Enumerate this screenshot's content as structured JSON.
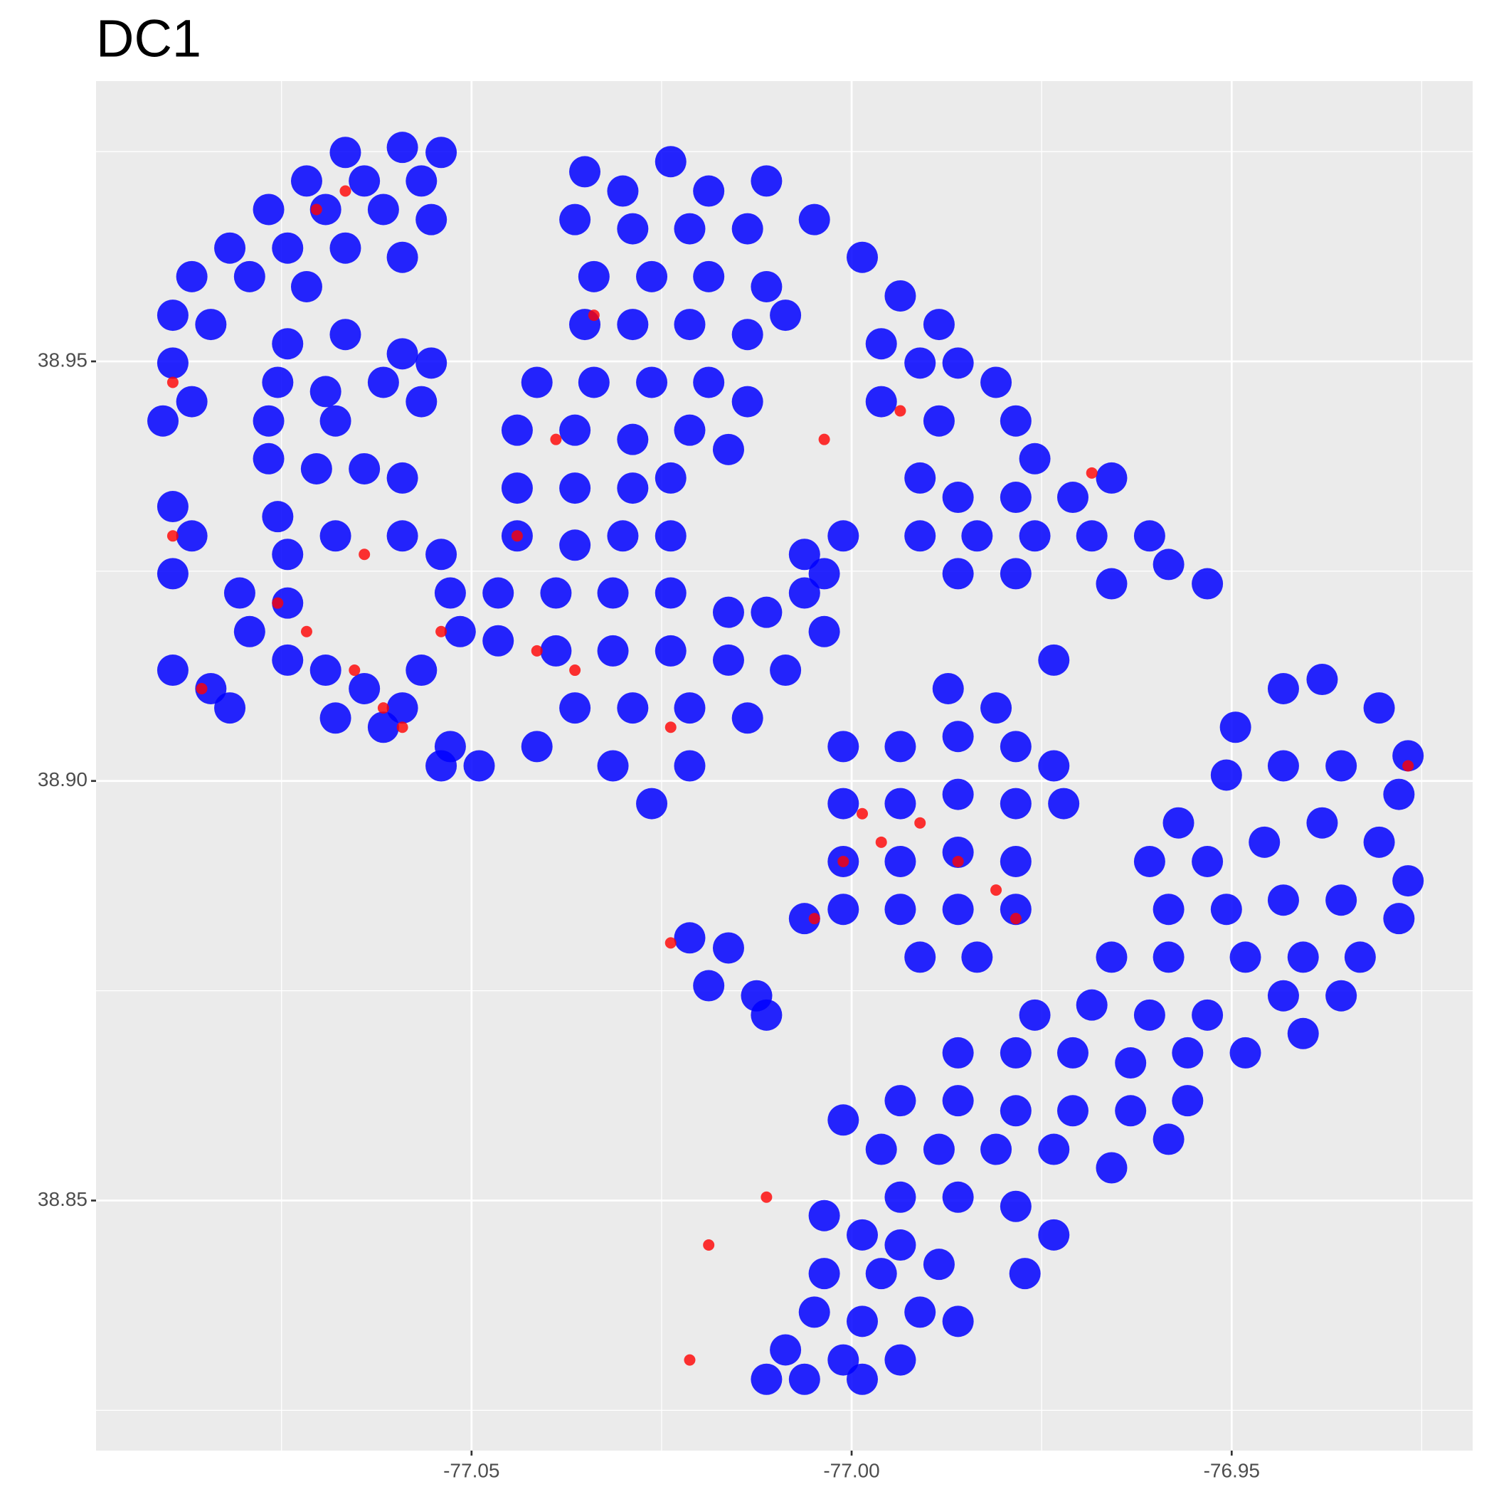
{
  "chart_data": {
    "type": "scatter",
    "title": "DC1",
    "xlim": [
      -77.0994,
      -76.9183
    ],
    "ylim": [
      38.8202,
      38.9834
    ],
    "xticks": [
      -77.05,
      {
        "value": -77,
        "label": "-77.00"
      },
      -76.95
    ],
    "yticks": [
      38.85,
      {
        "value": 38.9,
        "label": "38.90"
      },
      38.95
    ],
    "grid": true,
    "series": [
      {
        "color": "#0000ff",
        "points": [
          [
            -77.0666,
            38.9749
          ],
          [
            -77.0591,
            38.9755
          ],
          [
            -77.054,
            38.9749
          ],
          [
            -77.0717,
            38.9715
          ],
          [
            -77.0641,
            38.9715
          ],
          [
            -77.0566,
            38.9715
          ],
          [
            -77.0767,
            38.9681
          ],
          [
            -77.0692,
            38.9681
          ],
          [
            -77.0616,
            38.9681
          ],
          [
            -77.0553,
            38.9669
          ],
          [
            -77.0818,
            38.9635
          ],
          [
            -77.0742,
            38.9635
          ],
          [
            -77.0666,
            38.9635
          ],
          [
            -77.0591,
            38.9624
          ],
          [
            -77.0868,
            38.9601
          ],
          [
            -77.0792,
            38.9601
          ],
          [
            -77.0717,
            38.9589
          ],
          [
            -77.0893,
            38.9555
          ],
          [
            -77.0843,
            38.9544
          ],
          [
            -77.0893,
            38.9498
          ],
          [
            -77.0868,
            38.9452
          ],
          [
            -77.0906,
            38.9429
          ],
          [
            -77.0742,
            38.9521
          ],
          [
            -77.0666,
            38.9532
          ],
          [
            -77.0591,
            38.9509
          ],
          [
            -77.0553,
            38.9498
          ],
          [
            -77.0755,
            38.9475
          ],
          [
            -77.0692,
            38.9464
          ],
          [
            -77.0616,
            38.9475
          ],
          [
            -77.0566,
            38.9452
          ],
          [
            -77.0767,
            38.9429
          ],
          [
            -77.0679,
            38.9429
          ],
          [
            -77.0767,
            38.9384
          ],
          [
            -77.0704,
            38.9372
          ],
          [
            -77.0641,
            38.9372
          ],
          [
            -77.0591,
            38.9361
          ],
          [
            -77.0893,
            38.9327
          ],
          [
            -77.0868,
            38.9292
          ],
          [
            -77.0893,
            38.9247
          ],
          [
            -77.0755,
            38.9315
          ],
          [
            -77.0742,
            38.927
          ],
          [
            -77.0679,
            38.9292
          ],
          [
            -77.0591,
            38.9292
          ],
          [
            -77.054,
            38.927
          ],
          [
            -77.0805,
            38.9224
          ],
          [
            -77.0742,
            38.9212
          ],
          [
            -77.0792,
            38.9178
          ],
          [
            -77.0893,
            38.9132
          ],
          [
            -77.0843,
            38.911
          ],
          [
            -77.0818,
            38.9087
          ],
          [
            -77.0742,
            38.9144
          ],
          [
            -77.0692,
            38.9132
          ],
          [
            -77.0641,
            38.911
          ],
          [
            -77.0591,
            38.9087
          ],
          [
            -77.0566,
            38.9132
          ],
          [
            -77.0679,
            38.9075
          ],
          [
            -77.0616,
            38.9064
          ],
          [
            -77.0515,
            38.9178
          ],
          [
            -77.0528,
            38.9224
          ],
          [
            -77.054,
            38.9018
          ],
          [
            -77.0351,
            38.9726
          ],
          [
            -77.0301,
            38.9703
          ],
          [
            -77.0238,
            38.9738
          ],
          [
            -77.0188,
            38.9703
          ],
          [
            -77.0364,
            38.9669
          ],
          [
            -77.0288,
            38.9658
          ],
          [
            -77.0213,
            38.9658
          ],
          [
            -77.0137,
            38.9658
          ],
          [
            -77.0339,
            38.9601
          ],
          [
            -77.0263,
            38.9601
          ],
          [
            -77.0188,
            38.9601
          ],
          [
            -77.0112,
            38.9589
          ],
          [
            -77.0351,
            38.9544
          ],
          [
            -77.0288,
            38.9544
          ],
          [
            -77.0213,
            38.9544
          ],
          [
            -77.0137,
            38.9532
          ],
          [
            -77.0087,
            38.9555
          ],
          [
            -77.0414,
            38.9475
          ],
          [
            -77.0339,
            38.9475
          ],
          [
            -77.0263,
            38.9475
          ],
          [
            -77.0188,
            38.9475
          ],
          [
            -77.0137,
            38.9452
          ],
          [
            -77.044,
            38.9418
          ],
          [
            -77.0364,
            38.9418
          ],
          [
            -77.0288,
            38.9407
          ],
          [
            -77.0213,
            38.9418
          ],
          [
            -77.0162,
            38.9395
          ],
          [
            -77.044,
            38.9349
          ],
          [
            -77.0364,
            38.9349
          ],
          [
            -77.0288,
            38.9349
          ],
          [
            -77.0238,
            38.9361
          ],
          [
            -77.044,
            38.9292
          ],
          [
            -77.0364,
            38.9281
          ],
          [
            -77.0301,
            38.9292
          ],
          [
            -77.0238,
            38.9292
          ],
          [
            -77.0465,
            38.9224
          ],
          [
            -77.0389,
            38.9224
          ],
          [
            -77.0314,
            38.9224
          ],
          [
            -77.0238,
            38.9224
          ],
          [
            -77.0162,
            38.9201
          ],
          [
            -77.0112,
            38.9201
          ],
          [
            -77.0062,
            38.9224
          ],
          [
            -77.0036,
            38.9178
          ],
          [
            -77.0465,
            38.9167
          ],
          [
            -77.0389,
            38.9155
          ],
          [
            -77.0314,
            38.9155
          ],
          [
            -77.0238,
            38.9155
          ],
          [
            -77.0162,
            38.9144
          ],
          [
            -77.0087,
            38.9132
          ],
          [
            -77.0364,
            38.9087
          ],
          [
            -77.0288,
            38.9087
          ],
          [
            -77.0213,
            38.9087
          ],
          [
            -77.0137,
            38.9075
          ],
          [
            -77.0528,
            38.9041
          ],
          [
            -77.049,
            38.9018
          ],
          [
            -77.0414,
            38.9041
          ],
          [
            -77.0314,
            38.9018
          ],
          [
            -77.0213,
            38.9018
          ],
          [
            -77.0263,
            38.8973
          ],
          [
            -77.0036,
            38.9247
          ],
          [
            -77.0062,
            38.927
          ],
          [
            -77.0011,
            38.9292
          ],
          [
            -77.0112,
            38.9715
          ],
          [
            -77.0049,
            38.9669
          ],
          [
            -76.9986,
            38.9624
          ],
          [
            -76.9936,
            38.9578
          ],
          [
            -76.9885,
            38.9544
          ],
          [
            -76.9961,
            38.9521
          ],
          [
            -76.991,
            38.9498
          ],
          [
            -76.986,
            38.9498
          ],
          [
            -76.981,
            38.9475
          ],
          [
            -76.9961,
            38.9452
          ],
          [
            -76.9885,
            38.9429
          ],
          [
            -76.9784,
            38.9429
          ],
          [
            -76.9759,
            38.9384
          ],
          [
            -76.991,
            38.9361
          ],
          [
            -76.986,
            38.9338
          ],
          [
            -76.9784,
            38.9338
          ],
          [
            -76.9709,
            38.9338
          ],
          [
            -76.9658,
            38.9361
          ],
          [
            -76.991,
            38.9292
          ],
          [
            -76.9835,
            38.9292
          ],
          [
            -76.9759,
            38.9292
          ],
          [
            -76.9684,
            38.9292
          ],
          [
            -76.9608,
            38.9292
          ],
          [
            -76.986,
            38.9247
          ],
          [
            -76.9784,
            38.9247
          ],
          [
            -76.9658,
            38.9235
          ],
          [
            -76.9583,
            38.9258
          ],
          [
            -76.9532,
            38.9235
          ],
          [
            -76.9734,
            38.9144
          ],
          [
            -76.9873,
            38.911
          ],
          [
            -76.981,
            38.9087
          ],
          [
            -77.0011,
            38.9041
          ],
          [
            -76.9936,
            38.9041
          ],
          [
            -76.986,
            38.9053
          ],
          [
            -76.9784,
            38.9041
          ],
          [
            -76.9734,
            38.9018
          ],
          [
            -77.0011,
            38.8973
          ],
          [
            -76.9936,
            38.8973
          ],
          [
            -76.986,
            38.8984
          ],
          [
            -76.9784,
            38.8973
          ],
          [
            -76.9721,
            38.8973
          ],
          [
            -77.0011,
            38.8904
          ],
          [
            -76.9936,
            38.8904
          ],
          [
            -76.986,
            38.8915
          ],
          [
            -76.9784,
            38.8904
          ],
          [
            -77.0011,
            38.8847
          ],
          [
            -76.9936,
            38.8847
          ],
          [
            -76.986,
            38.8847
          ],
          [
            -76.9784,
            38.8847
          ],
          [
            -76.991,
            38.879
          ],
          [
            -76.9835,
            38.879
          ],
          [
            -77.0062,
            38.8836
          ],
          [
            -77.0213,
            38.8813
          ],
          [
            -77.0162,
            38.8801
          ],
          [
            -77.0188,
            38.8756
          ],
          [
            -77.0125,
            38.8744
          ],
          [
            -77.0112,
            38.8721
          ],
          [
            -76.9495,
            38.9064
          ],
          [
            -76.9432,
            38.911
          ],
          [
            -76.9381,
            38.9121
          ],
          [
            -76.9306,
            38.9087
          ],
          [
            -76.9268,
            38.903
          ],
          [
            -76.957,
            38.895
          ],
          [
            -76.9507,
            38.9007
          ],
          [
            -76.9432,
            38.9018
          ],
          [
            -76.9356,
            38.9018
          ],
          [
            -76.928,
            38.8984
          ],
          [
            -76.9608,
            38.8904
          ],
          [
            -76.9532,
            38.8904
          ],
          [
            -76.9457,
            38.8927
          ],
          [
            -76.9381,
            38.895
          ],
          [
            -76.9306,
            38.8927
          ],
          [
            -76.9268,
            38.8881
          ],
          [
            -76.9583,
            38.8847
          ],
          [
            -76.9507,
            38.8847
          ],
          [
            -76.9432,
            38.8858
          ],
          [
            -76.9356,
            38.8858
          ],
          [
            -76.928,
            38.8836
          ],
          [
            -76.9658,
            38.879
          ],
          [
            -76.9583,
            38.879
          ],
          [
            -76.9482,
            38.879
          ],
          [
            -76.9406,
            38.879
          ],
          [
            -76.9331,
            38.879
          ],
          [
            -76.9759,
            38.8721
          ],
          [
            -76.9684,
            38.8733
          ],
          [
            -76.9608,
            38.8721
          ],
          [
            -76.9532,
            38.8721
          ],
          [
            -76.9432,
            38.8744
          ],
          [
            -76.9356,
            38.8744
          ],
          [
            -76.986,
            38.8676
          ],
          [
            -76.9784,
            38.8676
          ],
          [
            -76.9709,
            38.8676
          ],
          [
            -76.9633,
            38.8664
          ],
          [
            -76.9558,
            38.8676
          ],
          [
            -76.9482,
            38.8676
          ],
          [
            -76.9406,
            38.8699
          ],
          [
            -76.9936,
            38.8619
          ],
          [
            -76.986,
            38.8619
          ],
          [
            -76.9784,
            38.8607
          ],
          [
            -76.9709,
            38.8607
          ],
          [
            -76.9633,
            38.8607
          ],
          [
            -76.9558,
            38.8619
          ],
          [
            -77.0011,
            38.8596
          ],
          [
            -76.9961,
            38.8561
          ],
          [
            -76.9885,
            38.8561
          ],
          [
            -76.981,
            38.8561
          ],
          [
            -76.9734,
            38.8561
          ],
          [
            -76.9658,
            38.8539
          ],
          [
            -76.9583,
            38.8573
          ],
          [
            -76.9936,
            38.8504
          ],
          [
            -76.986,
            38.8504
          ],
          [
            -76.9784,
            38.8493
          ],
          [
            -76.9734,
            38.8459
          ],
          [
            -76.9772,
            38.8413
          ],
          [
            -77.0036,
            38.8482
          ],
          [
            -76.9986,
            38.8459
          ],
          [
            -76.9936,
            38.8447
          ],
          [
            -77.0036,
            38.8413
          ],
          [
            -76.9961,
            38.8413
          ],
          [
            -76.9885,
            38.8424
          ],
          [
            -77.0049,
            38.8367
          ],
          [
            -76.9986,
            38.8356
          ],
          [
            -76.991,
            38.8367
          ],
          [
            -76.986,
            38.8356
          ],
          [
            -77.0087,
            38.8322
          ],
          [
            -77.0011,
            38.831
          ],
          [
            -76.9936,
            38.831
          ],
          [
            -77.0112,
            38.8287
          ],
          [
            -77.0062,
            38.8287
          ],
          [
            -76.9986,
            38.8287
          ]
        ]
      },
      {
        "color": "#ff0000",
        "points": [
          [
            -77.0755,
            38.9212
          ],
          [
            -77.0717,
            38.9178
          ],
          [
            -77.0654,
            38.9132
          ],
          [
            -77.0616,
            38.9087
          ],
          [
            -77.0591,
            38.9064
          ],
          [
            -77.0641,
            38.927
          ],
          [
            -77.0893,
            38.9292
          ],
          [
            -77.0855,
            38.911
          ],
          [
            -77.054,
            38.9178
          ],
          [
            -77.0704,
            38.9681
          ],
          [
            -77.0666,
            38.9703
          ],
          [
            -77.0893,
            38.9475
          ],
          [
            -77.044,
            38.9292
          ],
          [
            -77.0364,
            38.9132
          ],
          [
            -77.0238,
            38.9064
          ],
          [
            -76.9986,
            38.8961
          ],
          [
            -77.0011,
            38.8904
          ],
          [
            -76.9961,
            38.8927
          ],
          [
            -76.986,
            38.8904
          ],
          [
            -76.981,
            38.887
          ],
          [
            -76.991,
            38.895
          ],
          [
            -77.0049,
            38.8836
          ],
          [
            -77.0238,
            38.8807
          ],
          [
            -77.0213,
            38.831
          ],
          [
            -77.0188,
            38.8447
          ],
          [
            -77.0112,
            38.8504
          ],
          [
            -77.0036,
            38.9407
          ],
          [
            -76.9936,
            38.9441
          ],
          [
            -76.9684,
            38.9367
          ],
          [
            -76.9268,
            38.9018
          ],
          [
            -77.0339,
            38.9555
          ],
          [
            -77.0389,
            38.9407
          ],
          [
            -77.0414,
            38.9155
          ],
          [
            -76.9784,
            38.8836
          ]
        ]
      }
    ]
  }
}
